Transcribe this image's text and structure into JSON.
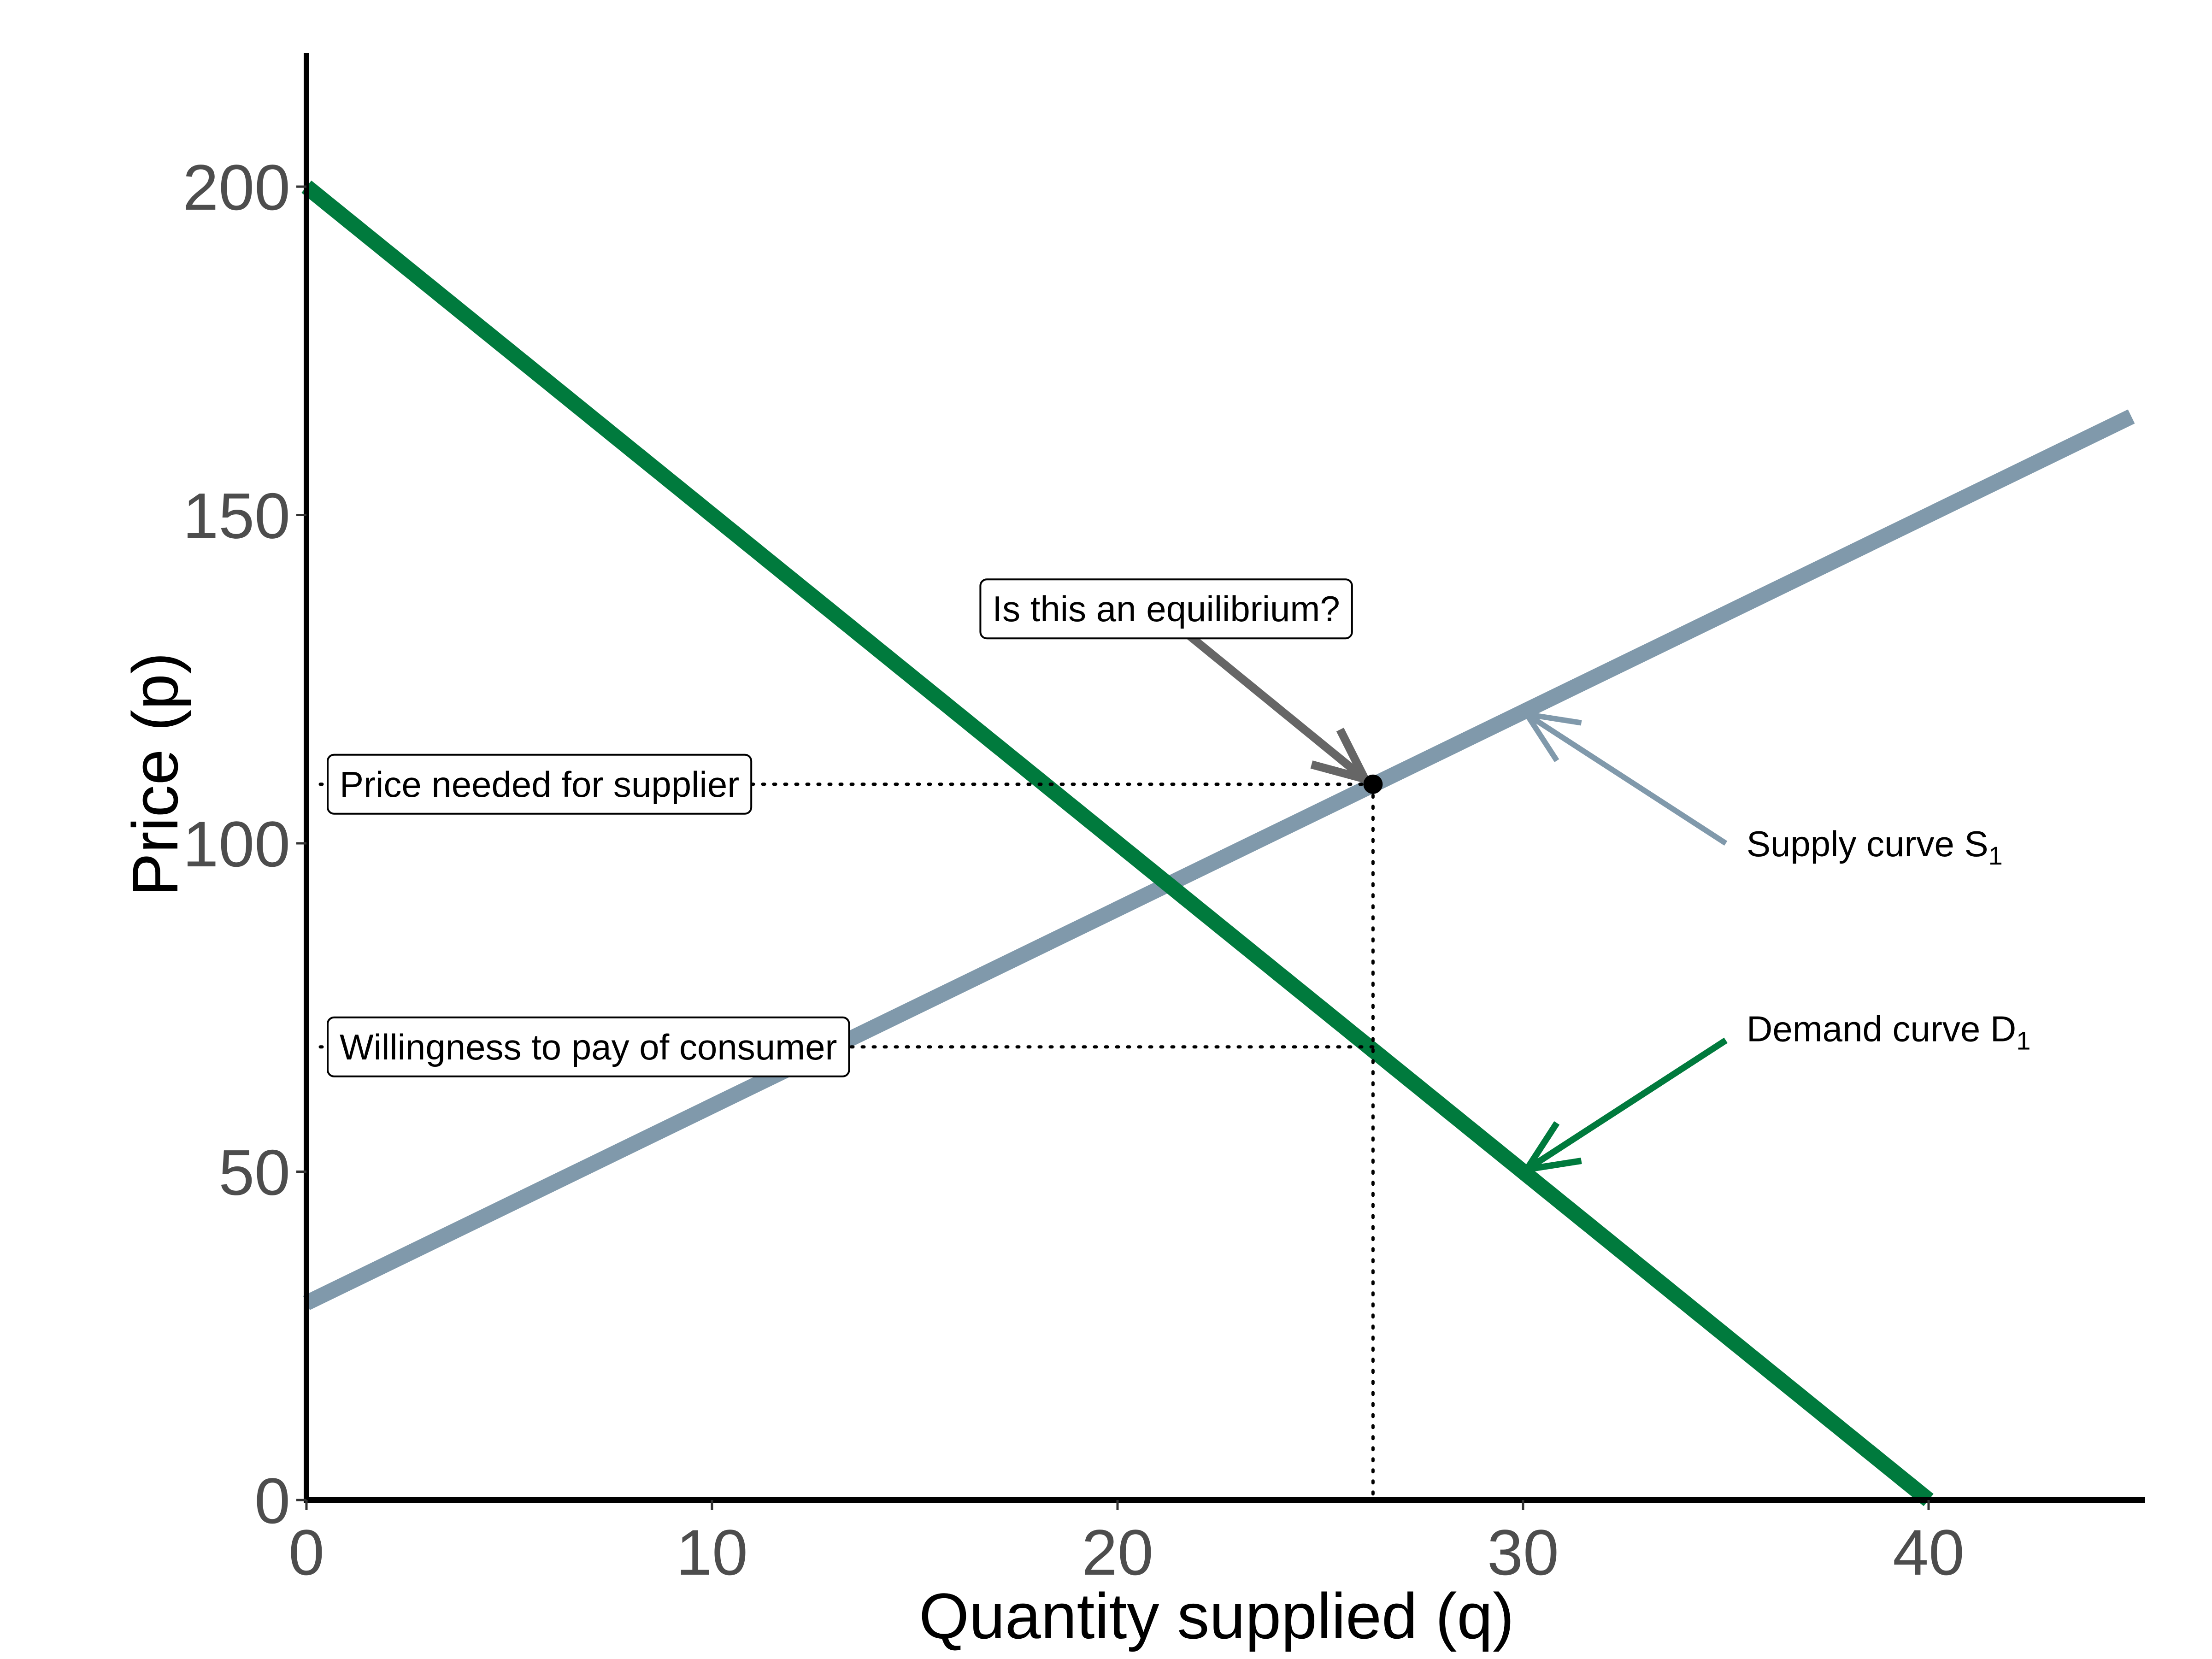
{
  "chart_data": {
    "type": "line",
    "xlabel": "Quantity supplied (q)",
    "ylabel": "Price (p)",
    "xlim": [
      0,
      45
    ],
    "ylim": [
      0,
      200
    ],
    "x_ticks": [
      0,
      10,
      20,
      30,
      40
    ],
    "y_ticks": [
      0,
      50,
      100,
      150,
      200
    ],
    "grid": false,
    "series": [
      {
        "key": "supply",
        "color": "#8099ab",
        "x": [
          0,
          45
        ],
        "y": [
          30,
          165
        ]
      },
      {
        "key": "demand",
        "color": "#007a3d",
        "x": [
          0,
          40
        ],
        "y": [
          200,
          0
        ]
      }
    ],
    "labels": {
      "supply": {
        "text": "Supply curve S",
        "subscript": "1",
        "color": "#8099ab",
        "arrow_from": [
          35,
          100
        ],
        "arrow_to": [
          30,
          120
        ]
      },
      "demand": {
        "text": "Demand curve D",
        "subscript": "1",
        "color": "#007a3d",
        "arrow_from": [
          35,
          70
        ],
        "arrow_to": [
          30,
          50
        ]
      }
    },
    "point": {
      "x": 26.3,
      "y": 109
    },
    "wtp_level": 69,
    "annotations": {
      "question": {
        "text": "Is this an equilibrium?",
        "arrow_from": [
          21.2,
          134.5
        ],
        "arrow_to": [
          26.1,
          109.8
        ]
      },
      "supplier_price": {
        "text": "Price needed for supplier"
      },
      "consumer_wtp": {
        "text": "Willingness to pay of consumer"
      }
    }
  }
}
